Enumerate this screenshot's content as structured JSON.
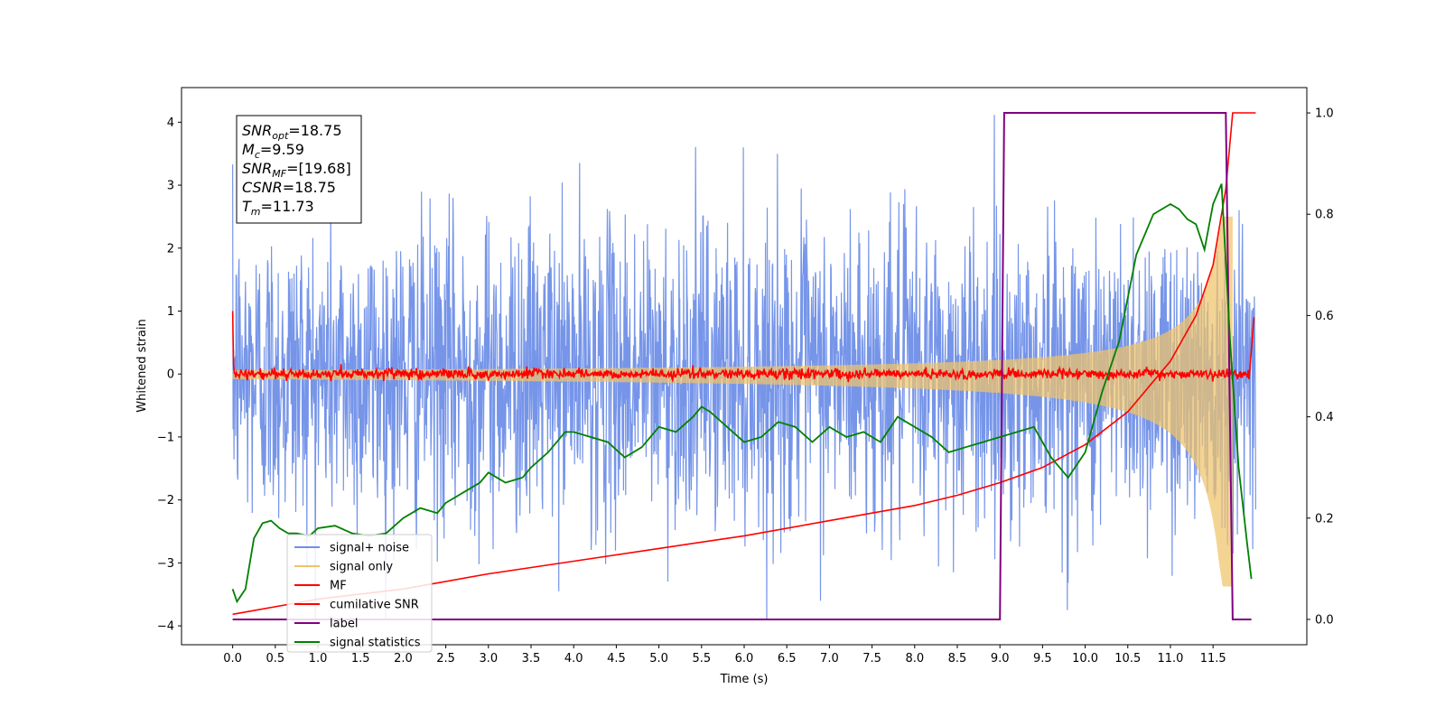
{
  "chart_data": {
    "type": "line",
    "xlabel": "Time (s)",
    "ylabel": "Whitened strain",
    "x_ticks": [
      "0.0",
      "0.5",
      "1.0",
      "1.5",
      "2.0",
      "2.5",
      "3.0",
      "3.5",
      "4.0",
      "4.5",
      "5.0",
      "5.5",
      "6.0",
      "6.5",
      "7.0",
      "7.5",
      "8.0",
      "8.5",
      "9.0",
      "9.5",
      "10.0",
      "10.5",
      "11.0",
      "11.5"
    ],
    "xlim": [
      -0.6,
      12.6
    ],
    "ylim_left": [
      -4.3,
      4.55
    ],
    "ylim_right": [
      -0.05,
      1.05
    ],
    "y_ticks_left": [
      "−4",
      "−3",
      "−2",
      "−1",
      "0",
      "1",
      "2",
      "3",
      "4"
    ],
    "y_ticks_right": [
      "0.0",
      "0.2",
      "0.4",
      "0.6",
      "0.8",
      "1.0"
    ],
    "info_box": [
      {
        "sym": "SNR",
        "sub": "opt",
        "val": "=18.75"
      },
      {
        "sym": "M",
        "sub": "c",
        "val": "=9.59"
      },
      {
        "sym": "SNR",
        "sub": "MF",
        "val": "=[19.68]"
      },
      {
        "sym": "CSNR",
        "sub": "",
        "val": "=18.75"
      },
      {
        "sym": "T",
        "sub": "m",
        "val": "=11.73"
      }
    ],
    "series": [
      {
        "name": "signal+ noise",
        "color": "#6f8fe8",
        "axis": "left",
        "note": "whitened data, noise amplitude ~1.3, spanning about -3.9 to 4.2"
      },
      {
        "name": "signal only",
        "color": "#f0c36a",
        "axis": "left",
        "note": "chirp envelope growing from ~0.02 at t=0 to ~2.5 near t=11.73, then ending"
      },
      {
        "name": "MF",
        "color": "#ff0000",
        "axis": "left",
        "note": "matched-filter output ~0 with noise ±0.1, starts at 1.0 and ends near 0.9"
      },
      {
        "name": "cumilative SNR",
        "color": "#ff0000",
        "axis": "right",
        "x": [
          0.0,
          1.0,
          2.0,
          3.0,
          4.0,
          5.0,
          6.0,
          7.0,
          8.0,
          8.5,
          9.0,
          9.5,
          10.0,
          10.5,
          11.0,
          11.3,
          11.5,
          11.65,
          11.73,
          12.0
        ],
        "y": [
          0.01,
          0.04,
          0.06,
          0.09,
          0.115,
          0.14,
          0.165,
          0.195,
          0.225,
          0.245,
          0.27,
          0.3,
          0.345,
          0.41,
          0.51,
          0.6,
          0.7,
          0.85,
          1.0,
          1.0
        ]
      },
      {
        "name": "label",
        "color": "#800080",
        "axis": "right",
        "x": [
          0.0,
          9.0,
          9.05,
          11.65,
          11.73,
          11.95
        ],
        "y": [
          0.0,
          0.0,
          1.0,
          1.0,
          0.0,
          0.0
        ]
      },
      {
        "name": "signal statistics",
        "color": "#008000",
        "axis": "right",
        "x": [
          0.0,
          0.05,
          0.15,
          0.25,
          0.35,
          0.45,
          0.55,
          0.65,
          0.75,
          0.9,
          1.0,
          1.2,
          1.4,
          1.6,
          1.8,
          2.0,
          2.2,
          2.4,
          2.5,
          2.7,
          2.9,
          3.0,
          3.2,
          3.4,
          3.5,
          3.7,
          3.9,
          4.0,
          4.2,
          4.4,
          4.6,
          4.8,
          5.0,
          5.2,
          5.4,
          5.5,
          5.6,
          5.8,
          6.0,
          6.2,
          6.4,
          6.6,
          6.8,
          7.0,
          7.2,
          7.4,
          7.6,
          7.8,
          8.0,
          8.2,
          8.4,
          8.6,
          8.8,
          9.0,
          9.2,
          9.4,
          9.6,
          9.8,
          10.0,
          10.2,
          10.4,
          10.6,
          10.8,
          11.0,
          11.1,
          11.2,
          11.3,
          11.4,
          11.5,
          11.6,
          11.7,
          11.8,
          11.9,
          11.95
        ],
        "y": [
          0.06,
          0.035,
          0.06,
          0.16,
          0.19,
          0.195,
          0.18,
          0.17,
          0.17,
          0.165,
          0.18,
          0.185,
          0.17,
          0.165,
          0.17,
          0.2,
          0.22,
          0.21,
          0.23,
          0.25,
          0.27,
          0.29,
          0.27,
          0.28,
          0.3,
          0.33,
          0.37,
          0.37,
          0.36,
          0.35,
          0.32,
          0.34,
          0.38,
          0.37,
          0.4,
          0.42,
          0.41,
          0.38,
          0.35,
          0.36,
          0.39,
          0.38,
          0.35,
          0.38,
          0.36,
          0.37,
          0.35,
          0.4,
          0.38,
          0.36,
          0.33,
          0.34,
          0.35,
          0.36,
          0.37,
          0.38,
          0.32,
          0.28,
          0.33,
          0.45,
          0.55,
          0.72,
          0.8,
          0.82,
          0.81,
          0.79,
          0.78,
          0.73,
          0.82,
          0.86,
          0.55,
          0.3,
          0.15,
          0.08
        ]
      }
    ]
  }
}
